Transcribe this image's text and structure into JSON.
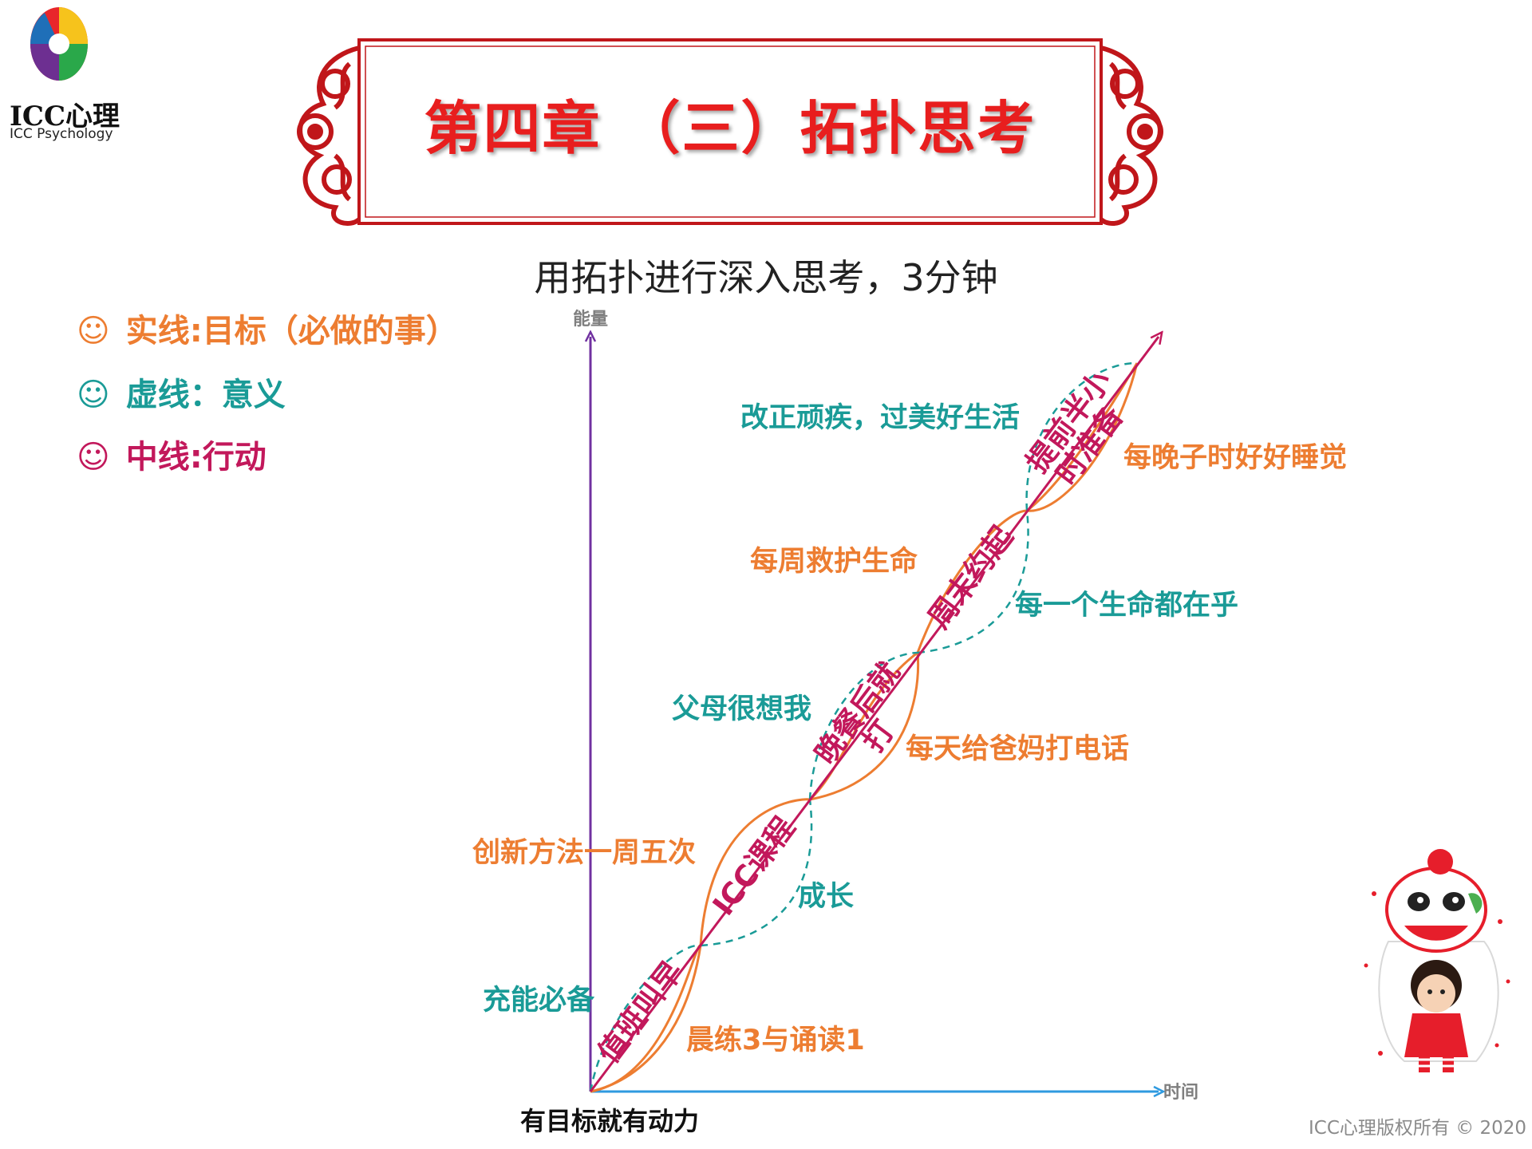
{
  "logo": {
    "cn": "ICC心理",
    "en": "ICC Psychology"
  },
  "title": "第四章 （三）拓扑思考",
  "subtitle": "用拓扑进行深入思考，3分钟",
  "legend": {
    "solid": "实线:目标（必做的事）",
    "dashed": "虚线：意义",
    "middle": "中线:行动",
    "bullet": "☺"
  },
  "axes": {
    "y_label": "能量",
    "x_label": "时间"
  },
  "goals_solid": [
    "晨练3与诵读1",
    "创新方法一周五次",
    "每天给爸妈打电话",
    "每周救护生命",
    "每晚子时好好睡觉"
  ],
  "meanings_dashed": [
    "充能必备",
    "成长",
    "父母很想我",
    "每一个生命都在乎",
    "改正顽疾，过美好生活"
  ],
  "actions_middle": [
    "值班叫早",
    "ICC课程",
    "晚餐后就",
    "打",
    "周末约起",
    "提前半小",
    "时准备"
  ],
  "caption": "有目标就有动力",
  "copyright": "ICC心理版权所有 © 2020",
  "colors": {
    "solid": "#ed7d31",
    "dashed": "#1a9b97",
    "middle": "#c2185b",
    "y_axis": "#7030a0",
    "x_axis": "#2e9ae0",
    "title": "#e81e1e"
  }
}
